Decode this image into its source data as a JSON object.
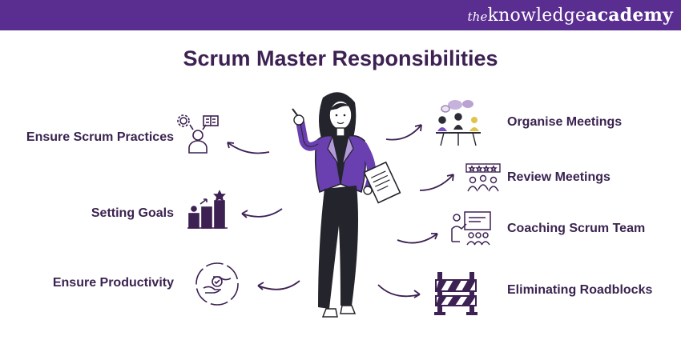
{
  "brand": {
    "the": "the",
    "knowledge": "knowledge",
    "academy": "academy"
  },
  "title": "Scrum Master Responsibilities",
  "responsibilities_left": [
    {
      "label": "Ensure Scrum Practices",
      "icon": "scrum-practices-icon"
    },
    {
      "label": "Setting Goals",
      "icon": "goals-icon"
    },
    {
      "label": "Ensure Productivity",
      "icon": "productivity-icon"
    }
  ],
  "responsibilities_right": [
    {
      "label": "Organise Meetings",
      "icon": "meeting-icon"
    },
    {
      "label": "Review Meetings",
      "icon": "review-icon"
    },
    {
      "label": "Coaching Scrum Team",
      "icon": "coaching-icon"
    },
    {
      "label": "Eliminating Roadblocks",
      "icon": "roadblock-icon"
    }
  ],
  "colors": {
    "brand_purple": "#5a2d91",
    "title_text": "#3d2152",
    "accent": "#7b4fc0",
    "dark": "#2c2c36"
  }
}
